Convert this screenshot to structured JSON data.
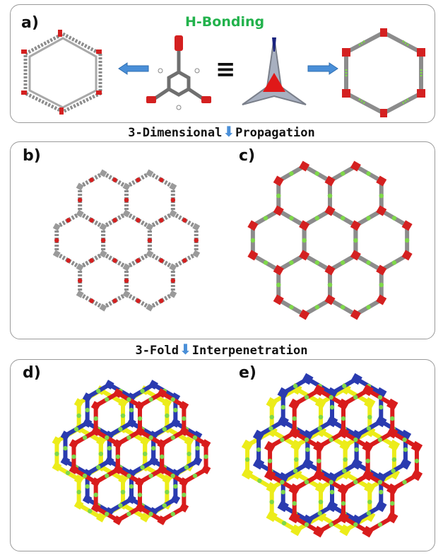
{
  "panel_a": {
    "label": "a)",
    "title": "H-Bonding",
    "equals": "≡"
  },
  "step1": {
    "left": "3-Dimensional",
    "arrow": "⬇",
    "right": "Propagation"
  },
  "panel_b": {
    "label": "b)"
  },
  "panel_c": {
    "label": "c)"
  },
  "step2": {
    "left": "3-Fold",
    "arrow": "⬇",
    "right": "Interpenetration"
  },
  "panel_d": {
    "label": "d)"
  },
  "panel_e": {
    "label": "e)"
  },
  "colors": {
    "framework": "#8c8c8c",
    "oxygen": "#d42020",
    "hbond": "#7ed84a",
    "net_blue": "#2a3bb0",
    "net_red": "#d81c1c",
    "net_yellow": "#ecec1a",
    "arrow": "#4a8fd8"
  }
}
